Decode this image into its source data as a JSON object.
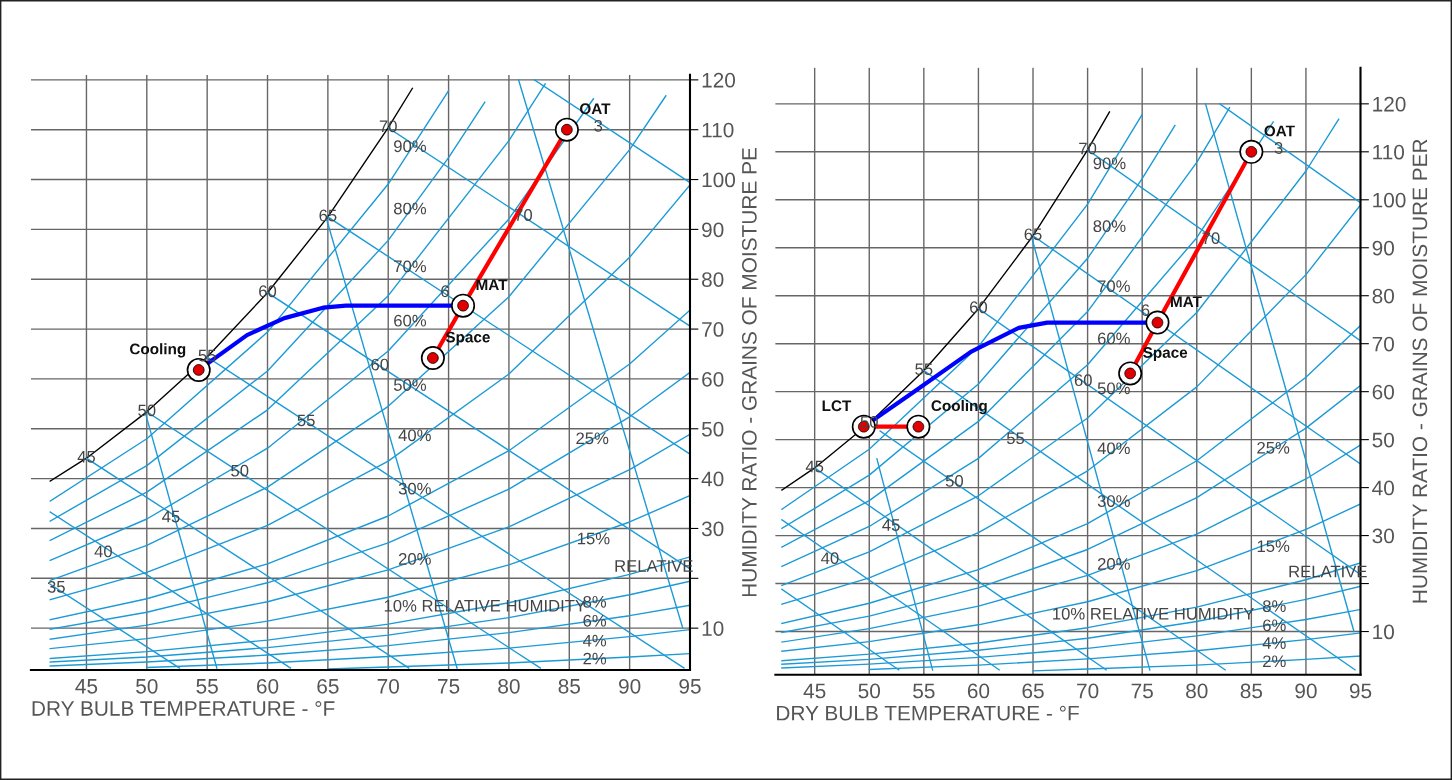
{
  "chart_data": [
    {
      "type": "line",
      "xlabel": "DRY BULB TEMPERATURE - °F",
      "ylabel": "HUMIDITY RATIO - GRAINS OF MOISTURE PE",
      "xlim": [
        40.4,
        95
      ],
      "ylim": [
        1.6,
        121
      ],
      "xticks": [
        45,
        50,
        55,
        60,
        65,
        70,
        75,
        80,
        85,
        90,
        95
      ],
      "yticks": [
        10,
        {
          "value": 20,
          "label": null
        },
        30,
        40,
        50,
        60,
        70,
        80,
        90,
        100,
        110,
        120
      ],
      "grid": true,
      "legend": false,
      "series": [
        {
          "color": "#000000",
          "x": [
            42,
            45,
            50,
            55,
            60,
            65,
            70,
            72
          ],
          "values": [
            39.5,
            44.1,
            53.4,
            64.4,
            77.3,
            92.5,
            110.4,
            118.3
          ]
        },
        {
          "color": "#1b9ad6",
          "x": [
            42,
            50,
            60,
            70,
            75
          ],
          "values": [
            35.5,
            48.0,
            69.4,
            99.1,
            117.8
          ]
        },
        {
          "color": "#1b9ad6",
          "x": [
            42,
            50,
            60,
            70,
            75,
            78
          ],
          "values": [
            31.5,
            42.6,
            61.6,
            87.8,
            104.4,
            115.5
          ]
        },
        {
          "color": "#1b9ad6",
          "x": [
            42,
            50,
            60,
            70,
            80,
            83
          ],
          "values": [
            27.6,
            37.3,
            53.8,
            76.7,
            107.8,
            119.2
          ]
        },
        {
          "color": "#1b9ad6",
          "x": [
            42,
            50,
            60,
            70,
            80,
            87
          ],
          "values": [
            23.6,
            31.9,
            46.1,
            65.6,
            92.1,
            116.2
          ]
        },
        {
          "color": "#1b9ad6",
          "x": [
            42,
            50,
            60,
            70,
            80,
            90,
            93
          ],
          "values": [
            19.6,
            26.6,
            38.3,
            54.5,
            76.5,
            106.0,
            116.8
          ]
        },
        {
          "color": "#1b9ad6",
          "x": [
            42,
            50,
            60,
            70,
            80,
            90,
            95
          ],
          "values": [
            15.7,
            21.2,
            30.6,
            43.5,
            61.0,
            84.4,
            98.9
          ]
        },
        {
          "color": "#1b9ad6",
          "x": [
            42,
            50,
            60,
            70,
            80,
            90,
            95
          ],
          "values": [
            11.7,
            15.9,
            22.9,
            32.5,
            45.6,
            63.0,
            73.8
          ]
        },
        {
          "color": "#1b9ad6",
          "x": [
            42,
            50,
            60,
            70,
            80,
            90,
            95
          ],
          "values": [
            9.8,
            13.2,
            19.1,
            27.1,
            37.9,
            52.4,
            61.3
          ]
        },
        {
          "color": "#1b9ad6",
          "x": [
            42,
            50,
            60,
            70,
            80,
            90,
            95
          ],
          "values": [
            7.8,
            10.6,
            15.3,
            21.7,
            30.3,
            41.8,
            48.9
          ]
        },
        {
          "color": "#1b9ad6",
          "x": [
            42,
            50,
            60,
            70,
            80,
            90,
            95
          ],
          "values": [
            5.9,
            7.9,
            11.4,
            16.2,
            22.7,
            31.3,
            36.6
          ]
        },
        {
          "color": "#1b9ad6",
          "x": [
            42,
            50,
            60,
            70,
            80,
            90,
            95
          ],
          "values": [
            3.9,
            5.3,
            7.6,
            10.8,
            15.1,
            20.8,
            24.3
          ]
        },
        {
          "color": "#1b9ad6",
          "x": [
            42,
            50,
            60,
            70,
            80,
            90,
            95
          ],
          "values": [
            3.2,
            4.2,
            6.1,
            8.6,
            12.1,
            16.7,
            19.4
          ]
        },
        {
          "color": "#1b9ad6",
          "x": [
            42,
            50,
            60,
            70,
            80,
            90,
            95
          ],
          "values": [
            2.4,
            3.2,
            4.6,
            6.5,
            9.1,
            12.5,
            14.6
          ]
        },
        {
          "color": "#1b9ad6",
          "x": [
            50,
            60,
            70,
            80,
            90,
            95
          ],
          "values": [
            2.1,
            3.0,
            4.3,
            6.0,
            8.3,
            9.7
          ]
        },
        {
          "color": "#1b9ad6",
          "x": [
            65,
            70,
            80,
            90,
            95
          ],
          "values": [
            1.8,
            2.2,
            3.0,
            4.2,
            4.9
          ]
        },
        {
          "color": "#1b9ad6",
          "x": [
            42,
            52.7
          ],
          "values": [
            18.8,
            2
          ]
        },
        {
          "color": "#1b9ad6",
          "x": [
            42,
            61.9
          ],
          "values": [
            33.3,
            2
          ]
        },
        {
          "color": "#1b9ad6",
          "x": [
            45,
            71.7
          ],
          "values": [
            44.1,
            2
          ]
        },
        {
          "color": "#1b9ad6",
          "x": [
            50,
            82.6
          ],
          "values": [
            53.4,
            2
          ]
        },
        {
          "color": "#1b9ad6",
          "x": [
            55,
            94.5
          ],
          "values": [
            64.4,
            2
          ]
        },
        {
          "color": "#1b9ad6",
          "x": [
            60,
            95
          ],
          "values": [
            77.3,
            21.9
          ]
        },
        {
          "color": "#1b9ad6",
          "x": [
            65,
            95
          ],
          "values": [
            92.5,
            44.9
          ]
        },
        {
          "color": "#1b9ad6",
          "x": [
            70,
            95
          ],
          "values": [
            110.4,
            70.6
          ]
        },
        {
          "color": "#1b9ad6",
          "x": [
            82.1,
            95
          ],
          "values": [
            120,
            99.4
          ]
        },
        {
          "color": "#1b9ad6",
          "x": [
            55.8,
            49.9
          ],
          "values": [
            2,
            53
          ]
        },
        {
          "color": "#1b9ad6",
          "x": [
            75.7,
            64.9
          ],
          "values": [
            2,
            92
          ]
        },
        {
          "color": "#1b9ad6",
          "x": [
            94.4,
            80.8
          ],
          "values": [
            10,
            120
          ]
        },
        {
          "color": "#ff0000",
          "marker": "circle",
          "x": [
            84.8,
            76.2,
            73.7
          ],
          "values": [
            110,
            74.7,
            64.2
          ]
        },
        {
          "color": "#0000ff",
          "x": [
            54.3,
            58.3,
            61.4,
            64.6,
            66.5,
            74.7,
            76.2
          ],
          "values": [
            61.8,
            68.8,
            72.2,
            74.3,
            74.7,
            74.7,
            74.7
          ]
        },
        {
          "type": "scatter",
          "marker": "circle",
          "color": "#e00000",
          "x": [
            84.8,
            76.2,
            73.7,
            54.3
          ],
          "values": [
            110,
            74.7,
            64.2,
            61.8
          ]
        }
      ],
      "annotations": [
        {
          "text": "OAT",
          "x": 84.8,
          "y": 110
        },
        {
          "text": "MAT",
          "x": 76.2,
          "y": 74.7
        },
        {
          "text": "Space",
          "x": 73.7,
          "y": 64.2
        },
        {
          "text": "Cooling",
          "x": 54.3,
          "y": 61.8
        },
        {
          "text": "70",
          "x": 70,
          "y": 110.4
        },
        {
          "text": "65",
          "x": 65,
          "y": 92.5
        },
        {
          "text": "60",
          "x": 60,
          "y": 77.3
        },
        {
          "text": "55",
          "x": 55,
          "y": 64.4
        },
        {
          "text": "50",
          "x": 50,
          "y": 53.4
        },
        {
          "text": "45",
          "x": 45,
          "y": 44.1
        },
        {
          "text": "60",
          "x": 69.3,
          "y": 62.6
        },
        {
          "text": "55",
          "x": 63.2,
          "y": 51.4
        },
        {
          "text": "50",
          "x": 57.7,
          "y": 41.3
        },
        {
          "text": "45",
          "x": 52.0,
          "y": 32.1
        },
        {
          "text": "40",
          "x": 46.4,
          "y": 25.1
        },
        {
          "text": "35",
          "x": 42.5,
          "y": 18.0
        },
        {
          "text": "70",
          "x": 81.2,
          "y": 92.6
        },
        {
          "text": "6",
          "x": 74.7,
          "y": 77.3
        },
        {
          "text": "3",
          "x": 87.4,
          "y": 110.5
        },
        {
          "text": "90%",
          "x": 71.8,
          "y": 106.4
        },
        {
          "text": "80%",
          "x": 71.8,
          "y": 93.9
        },
        {
          "text": "70%",
          "x": 71.8,
          "y": 82.3
        },
        {
          "text": "60%",
          "x": 71.8,
          "y": 71.4
        },
        {
          "text": "50%",
          "x": 71.8,
          "y": 58.5
        },
        {
          "text": "40%",
          "x": 72.2,
          "y": 48.4
        },
        {
          "text": "30%",
          "x": 72.2,
          "y": 37.7
        },
        {
          "text": "20%",
          "x": 72.2,
          "y": 23.6
        },
        {
          "text": "25%",
          "x": 86.9,
          "y": 47.8
        },
        {
          "text": "15%",
          "x": 87.0,
          "y": 27.7
        },
        {
          "text": "8%",
          "x": 87.1,
          "y": 15.0
        },
        {
          "text": "6%",
          "x": 87.1,
          "y": 11.2
        },
        {
          "text": "4%",
          "x": 87.1,
          "y": 7.2
        },
        {
          "text": "2%",
          "x": 87.1,
          "y": 3.6
        },
        {
          "text": "10% RELATIVE HUMIDITY",
          "x": 78,
          "y": 14.2
        },
        {
          "text": "RELATIVE",
          "x": 92,
          "y": 22.2
        }
      ]
    },
    {
      "type": "line",
      "xlabel": "DRY BULB TEMPERATURE - °F",
      "ylabel": "HUMIDITY RATIO - GRAINS OF MOISTURE PER",
      "xlim": [
        41.4,
        95
      ],
      "ylim": [
        1,
        127.5
      ],
      "xticks": [
        45,
        50,
        55,
        60,
        65,
        70,
        75,
        80,
        85,
        90,
        95
      ],
      "yticks": [
        10,
        {
          "value": 20,
          "label": null
        },
        30,
        40,
        50,
        60,
        70,
        80,
        90,
        100,
        110,
        120
      ],
      "grid": true,
      "legend": false,
      "series": [
        {
          "color": "#000000",
          "x": [
            42,
            45,
            50,
            55,
            60,
            65,
            70,
            72
          ],
          "values": [
            39.5,
            44.1,
            53.4,
            64.4,
            77.3,
            92.5,
            110.4,
            118.3
          ]
        },
        {
          "color": "#1b9ad6",
          "x": [
            42,
            50,
            60,
            70,
            75
          ],
          "values": [
            35.5,
            48.0,
            69.4,
            99.1,
            117.8
          ]
        },
        {
          "color": "#1b9ad6",
          "x": [
            42,
            50,
            60,
            70,
            75,
            78
          ],
          "values": [
            31.5,
            42.6,
            61.6,
            87.8,
            104.4,
            115.5
          ]
        },
        {
          "color": "#1b9ad6",
          "x": [
            42,
            50,
            60,
            70,
            80,
            83
          ],
          "values": [
            27.6,
            37.3,
            53.8,
            76.7,
            107.8,
            119.2
          ]
        },
        {
          "color": "#1b9ad6",
          "x": [
            42,
            50,
            60,
            70,
            80,
            87
          ],
          "values": [
            23.6,
            31.9,
            46.1,
            65.6,
            92.1,
            116.2
          ]
        },
        {
          "color": "#1b9ad6",
          "x": [
            42,
            50,
            60,
            70,
            80,
            90,
            93
          ],
          "values": [
            19.6,
            26.6,
            38.3,
            54.5,
            76.5,
            106.0,
            116.8
          ]
        },
        {
          "color": "#1b9ad6",
          "x": [
            42,
            50,
            60,
            70,
            80,
            90,
            95
          ],
          "values": [
            15.7,
            21.2,
            30.6,
            43.5,
            61.0,
            84.4,
            98.9
          ]
        },
        {
          "color": "#1b9ad6",
          "x": [
            42,
            50,
            60,
            70,
            80,
            90,
            95
          ],
          "values": [
            11.7,
            15.9,
            22.9,
            32.5,
            45.6,
            63.0,
            73.8
          ]
        },
        {
          "color": "#1b9ad6",
          "x": [
            42,
            50,
            60,
            70,
            80,
            90,
            95
          ],
          "values": [
            9.8,
            13.2,
            19.1,
            27.1,
            37.9,
            52.4,
            61.3
          ]
        },
        {
          "color": "#1b9ad6",
          "x": [
            42,
            50,
            60,
            70,
            80,
            90,
            95
          ],
          "values": [
            7.8,
            10.6,
            15.3,
            21.7,
            30.3,
            41.8,
            48.9
          ]
        },
        {
          "color": "#1b9ad6",
          "x": [
            42,
            50,
            60,
            70,
            80,
            90,
            95
          ],
          "values": [
            5.9,
            7.9,
            11.4,
            16.2,
            22.7,
            31.3,
            36.6
          ]
        },
        {
          "color": "#1b9ad6",
          "x": [
            42,
            50,
            60,
            70,
            80,
            90,
            95
          ],
          "values": [
            3.9,
            5.3,
            7.6,
            10.8,
            15.1,
            20.8,
            24.3
          ]
        },
        {
          "color": "#1b9ad6",
          "x": [
            42,
            50,
            60,
            70,
            80,
            90,
            95
          ],
          "values": [
            3.2,
            4.2,
            6.1,
            8.6,
            12.1,
            16.7,
            19.4
          ]
        },
        {
          "color": "#1b9ad6",
          "x": [
            42,
            50,
            60,
            70,
            80,
            90,
            95
          ],
          "values": [
            2.4,
            3.2,
            4.6,
            6.5,
            9.1,
            12.5,
            14.6
          ]
        },
        {
          "color": "#1b9ad6",
          "x": [
            50,
            60,
            70,
            80,
            90,
            95
          ],
          "values": [
            2.1,
            3.0,
            4.3,
            6.0,
            8.3,
            9.7
          ]
        },
        {
          "color": "#1b9ad6",
          "x": [
            65,
            70,
            80,
            90,
            95
          ],
          "values": [
            1.8,
            2.2,
            3.0,
            4.2,
            4.9
          ]
        },
        {
          "color": "#1b9ad6",
          "x": [
            42,
            52.7
          ],
          "values": [
            18.8,
            2
          ]
        },
        {
          "color": "#1b9ad6",
          "x": [
            42,
            61.9
          ],
          "values": [
            33.3,
            2
          ]
        },
        {
          "color": "#1b9ad6",
          "x": [
            45,
            71.7
          ],
          "values": [
            44.1,
            2
          ]
        },
        {
          "color": "#1b9ad6",
          "x": [
            51,
            82.6
          ],
          "values": [
            51.8,
            2
          ]
        },
        {
          "color": "#1b9ad6",
          "x": [
            55,
            94.5
          ],
          "values": [
            64.4,
            2
          ]
        },
        {
          "color": "#1b9ad6",
          "x": [
            60,
            95
          ],
          "values": [
            77.3,
            21.9
          ]
        },
        {
          "color": "#1b9ad6",
          "x": [
            65,
            95
          ],
          "values": [
            92.5,
            44.9
          ]
        },
        {
          "color": "#1b9ad6",
          "x": [
            70,
            95
          ],
          "values": [
            110.4,
            70.6
          ]
        },
        {
          "color": "#1b9ad6",
          "x": [
            82.1,
            95
          ],
          "values": [
            120,
            99.4
          ]
        },
        {
          "color": "#1b9ad6",
          "x": [
            55.8,
            50.7
          ],
          "values": [
            2,
            46
          ]
        },
        {
          "color": "#1b9ad6",
          "x": [
            75.7,
            64.9
          ],
          "values": [
            2,
            92
          ]
        },
        {
          "color": "#1b9ad6",
          "x": [
            94.4,
            80.8
          ],
          "values": [
            10,
            120
          ]
        },
        {
          "color": "#ff0000",
          "marker": "circle",
          "x": [
            85,
            76.4,
            73.9
          ],
          "values": [
            110,
            74.4,
            63.8
          ]
        },
        {
          "color": "#ff0000",
          "marker": "circle",
          "x": [
            49.5,
            54.5
          ],
          "values": [
            52.7,
            52.7
          ]
        },
        {
          "color": "#0000ff",
          "x": [
            49.5,
            54.1,
            59.3,
            63.7,
            66.3,
            76.4
          ],
          "values": [
            52.7,
            60.0,
            68.3,
            73.3,
            74.4,
            74.4
          ]
        },
        {
          "type": "scatter",
          "marker": "circle",
          "color": "#e00000",
          "x": [
            85,
            76.4,
            73.9,
            54.5,
            49.5
          ],
          "values": [
            110,
            74.4,
            63.8,
            52.7,
            52.7
          ]
        }
      ],
      "annotations": [
        {
          "text": "OAT",
          "x": 85,
          "y": 110
        },
        {
          "text": "MAT",
          "x": 76.4,
          "y": 74.4
        },
        {
          "text": "Space",
          "x": 73.9,
          "y": 63.8
        },
        {
          "text": "Cooling",
          "x": 54.5,
          "y": 52.7
        },
        {
          "text": "LCT",
          "x": 49.5,
          "y": 52.7
        },
        {
          "text": "70",
          "x": 70,
          "y": 110.4
        },
        {
          "text": "65",
          "x": 65,
          "y": 92.5
        },
        {
          "text": "60",
          "x": 60,
          "y": 77.3
        },
        {
          "text": "55",
          "x": 55,
          "y": 64.4
        },
        {
          "text": "50",
          "x": 50,
          "y": 53.4
        },
        {
          "text": "45",
          "x": 45,
          "y": 44.1
        },
        {
          "text": "60",
          "x": 69.6,
          "y": 62.1
        },
        {
          "text": "55",
          "x": 63.4,
          "y": 50.0
        },
        {
          "text": "50",
          "x": 57.8,
          "y": 41.1
        },
        {
          "text": "45",
          "x": 52.0,
          "y": 31.9
        },
        {
          "text": "40",
          "x": 46.4,
          "y": 25.0
        },
        {
          "text": "70",
          "x": 81.3,
          "y": 91.7
        },
        {
          "text": "6",
          "x": 75.3,
          "y": 76.7
        },
        {
          "text": "3",
          "x": 87.5,
          "y": 110.5
        },
        {
          "text": "90%",
          "x": 72.0,
          "y": 107.3
        },
        {
          "text": "80%",
          "x": 72.0,
          "y": 94.2
        },
        {
          "text": "70%",
          "x": 72.4,
          "y": 81.7
        },
        {
          "text": "60%",
          "x": 72.4,
          "y": 70.8
        },
        {
          "text": "50%",
          "x": 72.4,
          "y": 60.4
        },
        {
          "text": "40%",
          "x": 72.4,
          "y": 47.9
        },
        {
          "text": "30%",
          "x": 72.4,
          "y": 36.9
        },
        {
          "text": "20%",
          "x": 72.4,
          "y": 23.8
        },
        {
          "text": "25%",
          "x": 87.0,
          "y": 48.0
        },
        {
          "text": "15%",
          "x": 87.0,
          "y": 27.5
        },
        {
          "text": "8%",
          "x": 87.1,
          "y": 15.0
        },
        {
          "text": "6%",
          "x": 87.1,
          "y": 11.0
        },
        {
          "text": "4%",
          "x": 87.1,
          "y": 7.3
        },
        {
          "text": "2%",
          "x": 87.1,
          "y": 3.5
        },
        {
          "text": "10% RELATIVE HUMIDITY",
          "x": 76,
          "y": 13.4
        },
        {
          "text": "RELATIVE",
          "x": 92,
          "y": 22.2
        }
      ]
    }
  ]
}
